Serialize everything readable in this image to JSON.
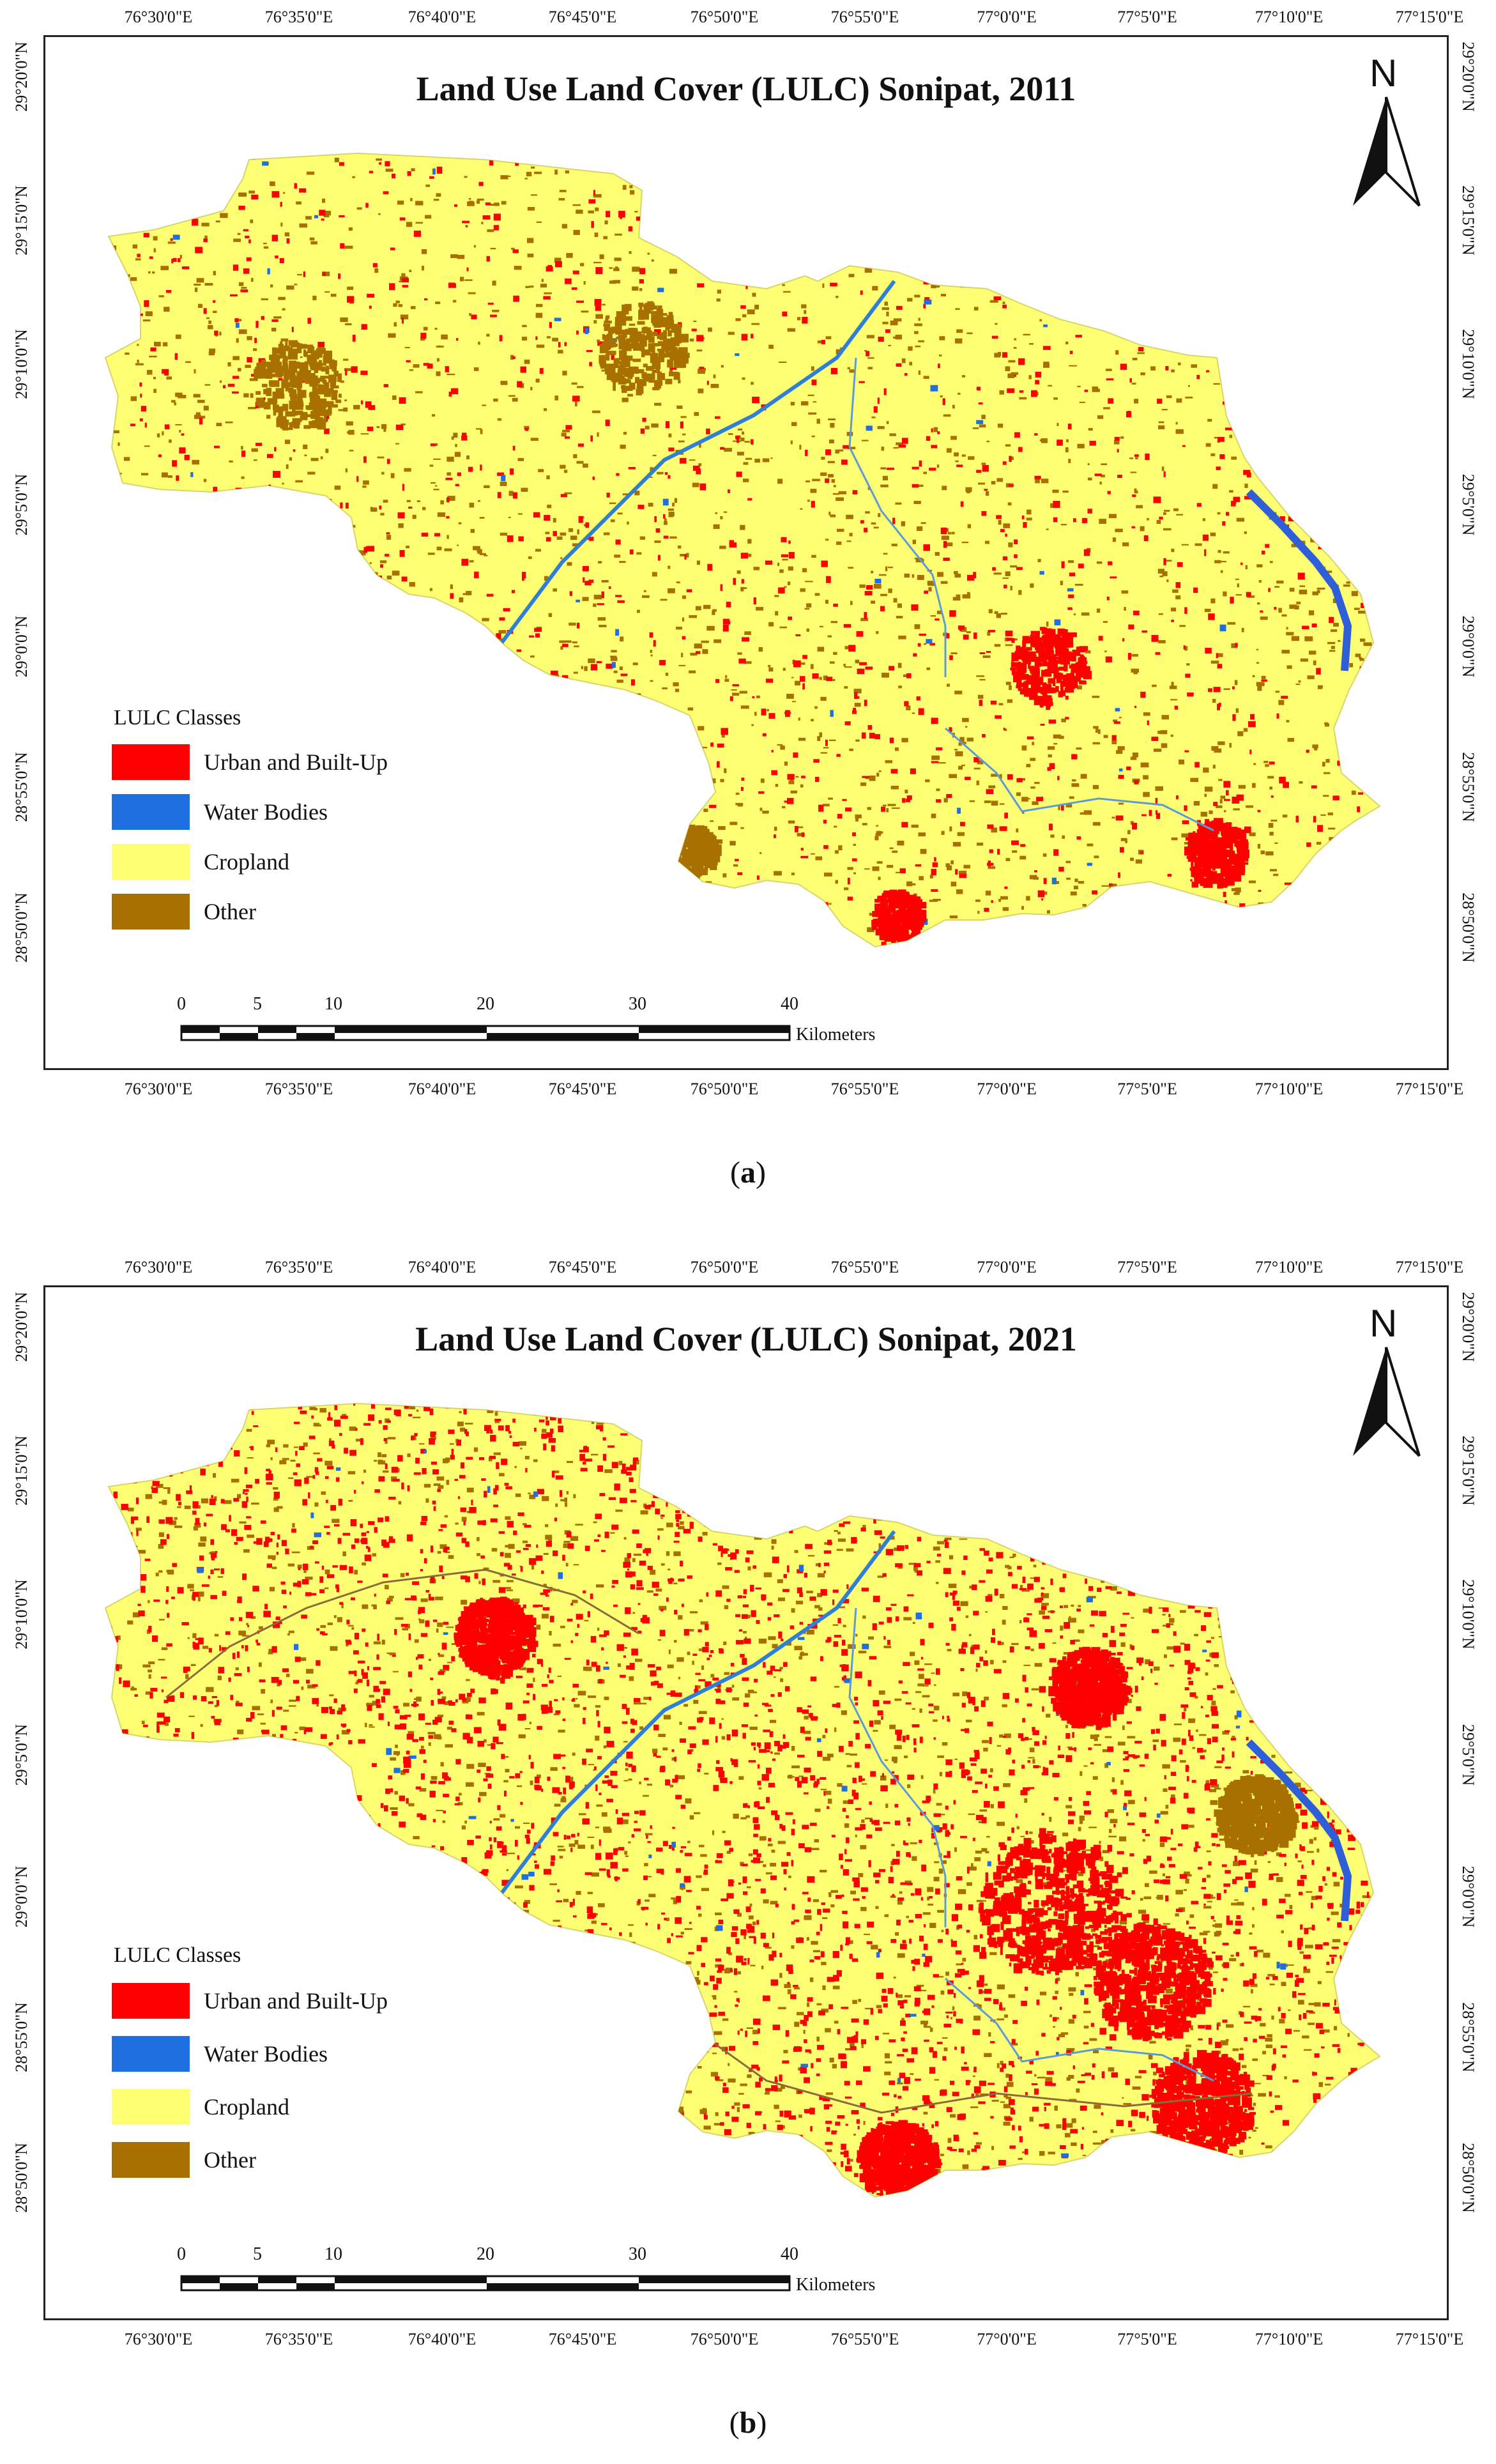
{
  "panels": [
    {
      "title": "Land Use Land Cover (LULC) Sonipat, 2011",
      "caption_letter": "a",
      "density": "low"
    },
    {
      "title": "Land Use Land Cover (LULC) Sonipat, 2021",
      "caption_letter": "b",
      "density": "high"
    }
  ],
  "longitude_labels": [
    "76°30'0\"E",
    "76°35'0\"E",
    "76°40'0\"E",
    "76°45'0\"E",
    "76°50'0\"E",
    "76°55'0\"E",
    "77°0'0\"E",
    "77°5'0\"E",
    "77°10'0\"E",
    "77°15'0\"E"
  ],
  "latitude_labels": [
    "29°20'0\"N",
    "29°15'0\"N",
    "29°10'0\"N",
    "29°5'0\"N",
    "29°0'0\"N",
    "28°55'0\"N",
    "28°50'0\"N"
  ],
  "north_label": "N",
  "legend": {
    "title": "LULC Classes",
    "classes": [
      {
        "label": "Urban and Built-Up",
        "color": "#ff0000"
      },
      {
        "label": "Water Bodies",
        "color": "#1f6fe0"
      },
      {
        "label": "Cropland",
        "color": "#ffff73"
      },
      {
        "label": "Other",
        "color": "#a87000"
      }
    ]
  },
  "scale_bar": {
    "ticks": [
      "0",
      "5",
      "10",
      "20",
      "30",
      "40"
    ],
    "unit": "Kilometers"
  }
}
